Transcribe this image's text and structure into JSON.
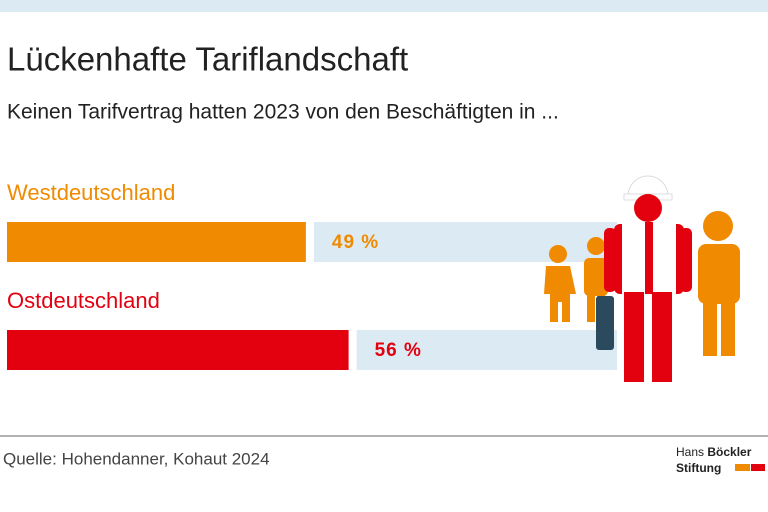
{
  "chart_data": {
    "type": "bar",
    "orientation": "horizontal",
    "title": "Lückenhafte Tariflandschaft",
    "subtitle": "Keinen Tarifvertrag hatten 2023 von den Beschäftigten in ...",
    "categories": [
      "Westdeutschland",
      "Ostdeutschland"
    ],
    "values": [
      49,
      56
    ],
    "value_labels": [
      "49 %",
      "56 %"
    ],
    "colors": [
      "#f08a00",
      "#e3000f"
    ],
    "track_color": "#dcebf3",
    "xlim": [
      0,
      100
    ]
  },
  "footer": {
    "source": "Quelle: Hohendanner, Kohaut 2024",
    "logo": [
      "Hans",
      "Böckler",
      "Stiftung"
    ]
  }
}
